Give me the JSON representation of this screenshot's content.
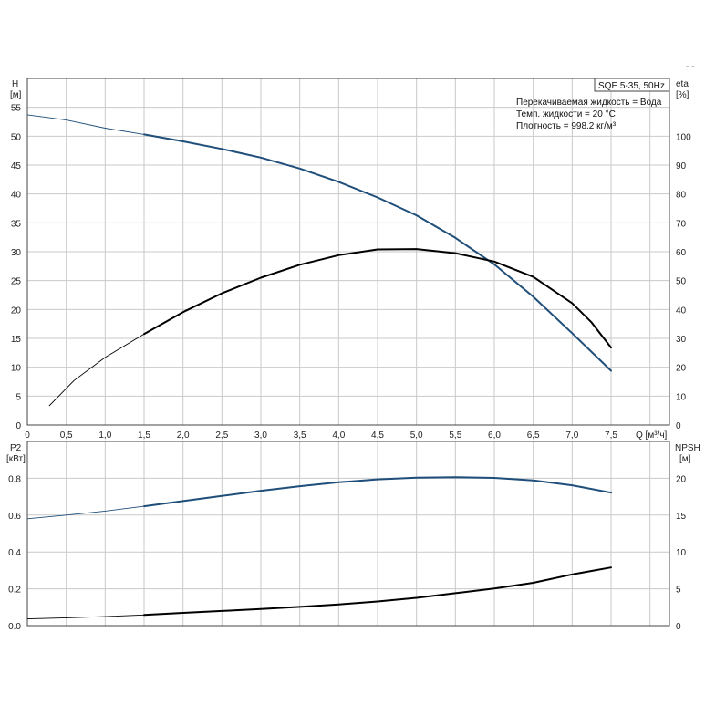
{
  "corner_mark": "- -",
  "info_box": {
    "title": "SQE 5-35, 50Hz",
    "lines": [
      "Перекачиваемая жидкость = Вода",
      "Темп. жидкости = 20 °C",
      "Плотность = 998.2 кг/м³"
    ]
  },
  "chart_data": [
    {
      "type": "line",
      "x_axis": {
        "label": "Q [м³/ч]",
        "range": [
          0,
          8.25
        ],
        "ticks": [
          0,
          0.5,
          1.0,
          1.5,
          2.0,
          2.5,
          3.0,
          3.5,
          4.0,
          4.5,
          5.0,
          5.5,
          6.0,
          6.5,
          7.0,
          7.5
        ],
        "tick_labels": [
          "0",
          "0,5",
          "1,0",
          "1,5",
          "2,0",
          "2,5",
          "3,0",
          "3,5",
          "4,0",
          "4,5",
          "5,0",
          "5,5",
          "6,0",
          "6,5",
          "7,0",
          "7,5"
        ]
      },
      "y_left": {
        "label_lines": [
          "H",
          "[м]"
        ],
        "range": [
          0,
          60
        ],
        "ticks": [
          0,
          5,
          10,
          15,
          20,
          25,
          30,
          35,
          40,
          45,
          50,
          55
        ],
        "tick_labels": [
          "0",
          "5",
          "10",
          "15",
          "20",
          "25",
          "30",
          "35",
          "40",
          "45",
          "50",
          "55"
        ]
      },
      "y_right": {
        "label_lines": [
          "eta",
          "[%]"
        ],
        "range": [
          0,
          120
        ],
        "ticks": [
          0,
          10,
          20,
          30,
          40,
          50,
          60,
          70,
          80,
          90,
          100
        ],
        "tick_labels": [
          "0",
          "10",
          "20",
          "30",
          "40",
          "50",
          "60",
          "70",
          "80",
          "90",
          "100"
        ]
      },
      "grid": true,
      "series": [
        {
          "axis": "left",
          "color": "#1e4e79",
          "x": [
            0,
            0.5,
            1.0,
            1.5,
            2.0,
            2.5,
            3.0,
            3.5,
            4.0,
            4.5,
            5.0,
            5.5,
            6.0,
            6.5,
            7.0,
            7.5
          ],
          "y": [
            53.7,
            52.8,
            51.4,
            50.3,
            49.1,
            47.8,
            46.3,
            44.4,
            42.1,
            39.4,
            36.3,
            32.4,
            27.8,
            22.2,
            15.9,
            9.4
          ],
          "thin_until_x": 1.5
        },
        {
          "axis": "right",
          "color": "#000000",
          "x": [
            0.28,
            0.6,
            1.0,
            1.5,
            2.0,
            2.5,
            3.0,
            3.5,
            4.0,
            4.5,
            5.0,
            5.5,
            6.0,
            6.5,
            7.0,
            7.25,
            7.5
          ],
          "y": [
            6.6,
            15.4,
            23.4,
            31.5,
            39.1,
            45.6,
            51.0,
            55.5,
            58.8,
            60.8,
            60.9,
            59.5,
            56.6,
            51.3,
            42.2,
            35.5,
            26.8
          ],
          "thin_until_x": 1.5
        }
      ]
    },
    {
      "type": "line",
      "x_axis": {
        "label": "",
        "range": [
          0,
          8.25
        ],
        "ticks": [
          0,
          0.5,
          1.0,
          1.5,
          2.0,
          2.5,
          3.0,
          3.5,
          4.0,
          4.5,
          5.0,
          5.5,
          6.0,
          6.5,
          7.0,
          7.5
        ],
        "tick_labels": []
      },
      "y_left": {
        "label_lines": [
          "P2",
          "[кВт]"
        ],
        "range": [
          0,
          1.0
        ],
        "ticks": [
          0,
          0.2,
          0.4,
          0.6,
          0.8
        ],
        "tick_labels": [
          "0.0",
          "0.2",
          "0.4",
          "0.6",
          "0.8"
        ]
      },
      "y_right": {
        "label_lines": [
          "NPSH",
          "[м]"
        ],
        "range": [
          0,
          25
        ],
        "ticks": [
          0,
          5,
          10,
          15,
          20
        ],
        "tick_labels": [
          "0",
          "5",
          "10",
          "15",
          "20"
        ]
      },
      "grid": true,
      "series": [
        {
          "axis": "left",
          "color": "#1e4e79",
          "x": [
            0,
            0.5,
            1.0,
            1.5,
            2.0,
            2.5,
            3.0,
            3.5,
            4.0,
            4.5,
            5.0,
            5.5,
            6.0,
            6.5,
            7.0,
            7.5
          ],
          "y": [
            0.58,
            0.6,
            0.622,
            0.648,
            0.676,
            0.704,
            0.732,
            0.757,
            0.778,
            0.794,
            0.803,
            0.806,
            0.802,
            0.788,
            0.762,
            0.722
          ],
          "thin_until_x": 1.5
        },
        {
          "axis": "right",
          "color": "#000000",
          "x": [
            0,
            0.5,
            1.0,
            1.5,
            2.0,
            2.5,
            3.0,
            3.5,
            4.0,
            4.5,
            5.0,
            5.5,
            6.0,
            6.5,
            7.0,
            7.5
          ],
          "y": [
            0.92,
            1.06,
            1.23,
            1.45,
            1.73,
            1.99,
            2.25,
            2.55,
            2.88,
            3.28,
            3.78,
            4.4,
            5.05,
            5.82,
            6.95,
            7.9
          ],
          "thin_until_x": 1.5
        }
      ]
    }
  ]
}
